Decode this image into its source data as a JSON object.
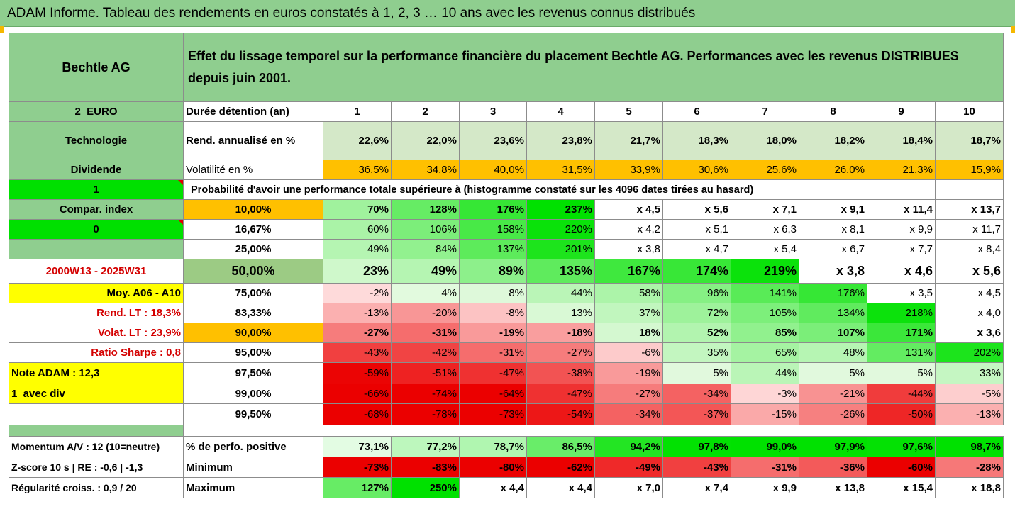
{
  "title": "ADAM Informe. Tableau des rendements en euros constatés à 1, 2, 3 … 10 ans avec les revenus connus distribués",
  "header": {
    "name": "Bechtle AG",
    "description": "Effet du lissage temporel sur la performance financière du placement Bechtle AG. Performances avec les revenus DISTRIBUES depuis juin 2001."
  },
  "left": {
    "currency": "2_EURO",
    "sector": "Technologie",
    "dividend": "Dividende",
    "value1": "1",
    "compar": "Compar. index",
    "value0": "0",
    "period": "2000W13 - 2025W31",
    "moy": "Moy. A06 - A10",
    "rend_lt": "Rend. LT :   18,3%",
    "volat_lt": "Volat. LT :   23,9%",
    "sharpe": "Ratio Sharpe :   0,8",
    "note": "Note ADAM : 12,3",
    "avec_div": "1_avec div",
    "momentum": "Momentum A/V : 12 (10=neutre)",
    "zscore": "Z-score 10 s  | RE : -0,6  | -1,3",
    "regularite": "Régularité croiss. : 0,9 / 20"
  },
  "duration_label": "Durée détention (an)",
  "years": [
    "1",
    "2",
    "3",
    "4",
    "5",
    "6",
    "7",
    "8",
    "9",
    "10"
  ],
  "rend": {
    "label": "Rend. annualisé en %",
    "values": [
      "22,6%",
      "22,0%",
      "23,6%",
      "23,8%",
      "21,7%",
      "18,3%",
      "18,0%",
      "18,2%",
      "18,4%",
      "18,7%"
    ]
  },
  "vol": {
    "label": "Volatilité en %",
    "values": [
      "36,5%",
      "34,8%",
      "40,0%",
      "31,5%",
      "33,9%",
      "30,6%",
      "25,6%",
      "26,0%",
      "21,3%",
      "15,9%"
    ]
  },
  "prob_title": "Probabilité d'avoir une performance totale supérieure à (histogramme constaté sur les 4096 dates tirées au hasard)",
  "prob_rows": [
    {
      "pct": "10,00%",
      "values": [
        "70%",
        "128%",
        "176%",
        "237%",
        "x 4,5",
        "x 5,6",
        "x 7,1",
        "x 9,1",
        "x 11,4",
        "x 13,7"
      ]
    },
    {
      "pct": "16,67%",
      "values": [
        "60%",
        "106%",
        "158%",
        "220%",
        "x 4,2",
        "x 5,1",
        "x 6,3",
        "x 8,1",
        "x 9,9",
        "x 11,7"
      ]
    },
    {
      "pct": "25,00%",
      "values": [
        "49%",
        "84%",
        "137%",
        "201%",
        "x 3,8",
        "x 4,7",
        "x 5,4",
        "x 6,7",
        "x 7,7",
        "x 8,4"
      ]
    },
    {
      "pct": "50,00%",
      "values": [
        "23%",
        "49%",
        "89%",
        "135%",
        "167%",
        "174%",
        "219%",
        "x 3,8",
        "x 4,6",
        "x 5,6"
      ]
    },
    {
      "pct": "75,00%",
      "values": [
        "-2%",
        "4%",
        "8%",
        "44%",
        "58%",
        "96%",
        "141%",
        "176%",
        "x 3,5",
        "x 4,5"
      ]
    },
    {
      "pct": "83,33%",
      "values": [
        "-13%",
        "-20%",
        "-8%",
        "13%",
        "37%",
        "72%",
        "105%",
        "134%",
        "218%",
        "x 4,0"
      ]
    },
    {
      "pct": "90,00%",
      "values": [
        "-27%",
        "-31%",
        "-19%",
        "-18%",
        "18%",
        "52%",
        "85%",
        "107%",
        "171%",
        "x 3,6"
      ]
    },
    {
      "pct": "95,00%",
      "values": [
        "-43%",
        "-42%",
        "-31%",
        "-27%",
        "-6%",
        "35%",
        "65%",
        "48%",
        "131%",
        "202%"
      ]
    },
    {
      "pct": "97,50%",
      "values": [
        "-59%",
        "-51%",
        "-47%",
        "-38%",
        "-19%",
        "5%",
        "44%",
        "5%",
        "5%",
        "33%"
      ]
    },
    {
      "pct": "99,00%",
      "values": [
        "-66%",
        "-74%",
        "-64%",
        "-47%",
        "-27%",
        "-34%",
        "-3%",
        "-21%",
        "-44%",
        "-5%"
      ]
    },
    {
      "pct": "99,50%",
      "values": [
        "-68%",
        "-78%",
        "-73%",
        "-54%",
        "-34%",
        "-37%",
        "-15%",
        "-26%",
        "-50%",
        "-13%"
      ]
    }
  ],
  "summary": {
    "positive": {
      "label": "% de perfo. positive",
      "values": [
        "73,1%",
        "77,2%",
        "78,7%",
        "86,5%",
        "94,2%",
        "97,8%",
        "99,0%",
        "97,9%",
        "97,6%",
        "98,7%"
      ]
    },
    "minimum": {
      "label": "Minimum",
      "values": [
        "-73%",
        "-83%",
        "-80%",
        "-62%",
        "-49%",
        "-43%",
        "-31%",
        "-36%",
        "-60%",
        "-28%"
      ]
    },
    "maximum": {
      "label": "Maximum",
      "values": [
        "127%",
        "250%",
        "x 4,4",
        "x 4,4",
        "x 7,0",
        "x 7,4",
        "x 9,9",
        "x 13,8",
        "x 15,4",
        "x 18,8"
      ]
    }
  },
  "colors": {
    "header_green": "#8fce8f",
    "orange": "#ffc000",
    "lime": "#00e000",
    "yellow": "#ffff00",
    "red_text": "#d40000"
  }
}
